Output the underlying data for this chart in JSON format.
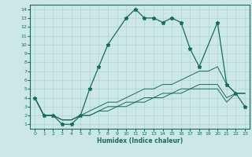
{
  "xlabel": "Humidex (Indice chaleur)",
  "bg_color": "#cce8e5",
  "grid_color": "#aed4cf",
  "line_color": "#1a6b5a",
  "xlim": [
    -0.5,
    23.5
  ],
  "ylim": [
    0.5,
    14.5
  ],
  "xticks": [
    0,
    1,
    2,
    3,
    4,
    5,
    6,
    7,
    8,
    9,
    10,
    11,
    12,
    13,
    14,
    15,
    16,
    17,
    18,
    19,
    20,
    21,
    22,
    23
  ],
  "yticks": [
    1,
    2,
    3,
    4,
    5,
    6,
    7,
    8,
    9,
    10,
    11,
    12,
    13,
    14
  ],
  "main_line": {
    "x": [
      0,
      1,
      2,
      3,
      4,
      5,
      6,
      7,
      8,
      10,
      11,
      12,
      13,
      14,
      15,
      16,
      17,
      18,
      20,
      21,
      22,
      23
    ],
    "y": [
      4,
      2,
      2,
      1,
      1,
      2,
      5,
      7.5,
      10,
      13,
      14,
      13,
      13,
      12.5,
      13,
      12.5,
      9.5,
      7.5,
      12.5,
      5.5,
      4.5,
      3
    ]
  },
  "line2": {
    "x": [
      0,
      1,
      2,
      3,
      4,
      5,
      6,
      7,
      8,
      9,
      10,
      11,
      12,
      13,
      14,
      15,
      16,
      17,
      18,
      19,
      20,
      21,
      22,
      23
    ],
    "y": [
      4,
      2,
      2,
      1.5,
      1.5,
      2,
      2.5,
      3,
      3.5,
      3.5,
      4,
      4.5,
      5,
      5,
      5.5,
      5.5,
      6,
      6.5,
      7,
      7,
      7.5,
      5.5,
      4.5,
      4.5
    ]
  },
  "line3": {
    "x": [
      0,
      1,
      2,
      3,
      4,
      5,
      6,
      7,
      8,
      9,
      10,
      11,
      12,
      13,
      14,
      15,
      16,
      17,
      18,
      19,
      20,
      21,
      22,
      23
    ],
    "y": [
      4,
      2,
      2,
      1.5,
      1.5,
      2,
      2,
      2.5,
      3,
      3,
      3.5,
      3.5,
      4,
      4,
      4.5,
      4.5,
      5,
      5,
      5.5,
      5.5,
      5.5,
      4,
      4.5,
      4.5
    ]
  },
  "line4": {
    "x": [
      0,
      1,
      2,
      3,
      4,
      5,
      6,
      7,
      8,
      9,
      10,
      11,
      12,
      13,
      14,
      15,
      16,
      17,
      18,
      19,
      20,
      21,
      22,
      23
    ],
    "y": [
      4,
      2,
      2,
      1.5,
      1.5,
      2,
      2,
      2.5,
      2.5,
      3,
      3,
      3.5,
      3.5,
      4,
      4,
      4.5,
      4.5,
      5,
      5,
      5,
      5,
      3.5,
      4.5,
      4.5
    ]
  }
}
